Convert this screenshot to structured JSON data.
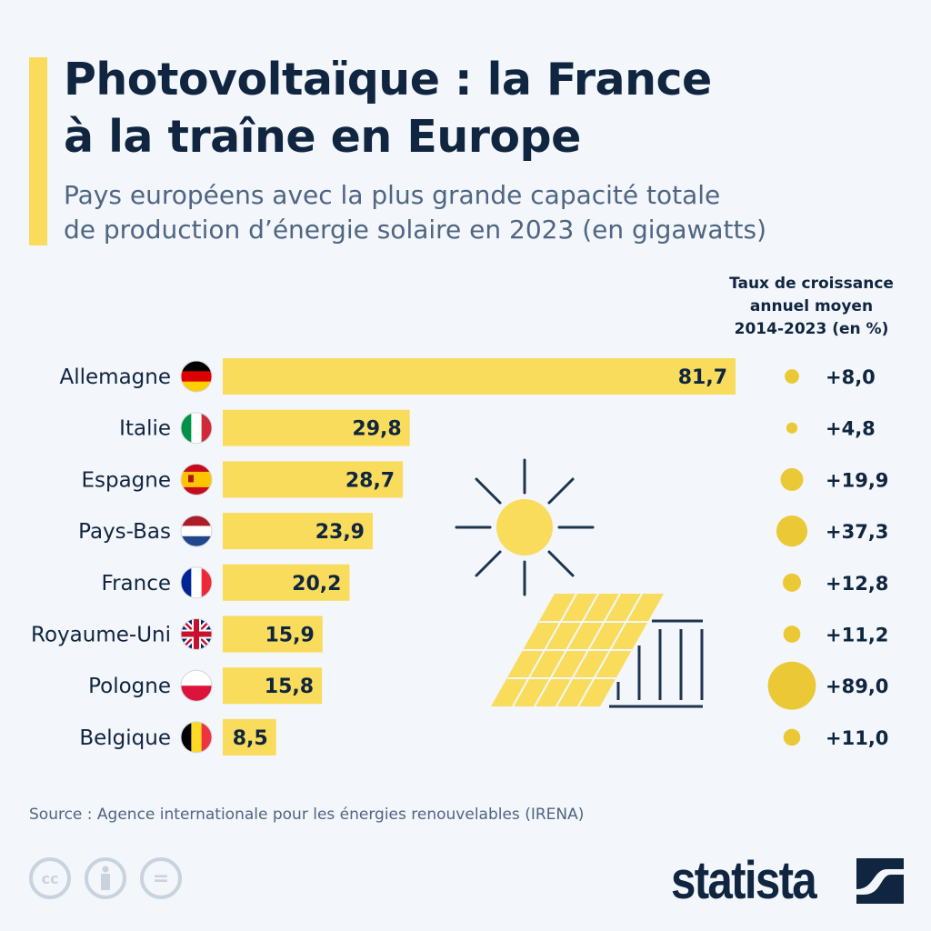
{
  "header": {
    "title_line1": "Photovoltaïque : la France",
    "title_line2": "à la traîne en Europe",
    "subtitle_line1": "Pays européens avec la plus grande capacité totale",
    "subtitle_line2": "de production d’énergie solaire en 2023 (en gigawatts)"
  },
  "growth_header": {
    "line1": "Taux de croissance",
    "line2": "annuel moyen",
    "line3": "2014-2023 (en %)"
  },
  "chart_data": {
    "type": "bar",
    "orientation": "horizontal",
    "categories": [
      "Allemagne",
      "Italie",
      "Espagne",
      "Pays-Bas",
      "France",
      "Royaume-Uni",
      "Pologne",
      "Belgique"
    ],
    "values": [
      81.7,
      29.8,
      28.7,
      23.9,
      20.2,
      15.9,
      15.8,
      8.5
    ],
    "value_labels": [
      "81,7",
      "29,8",
      "28,7",
      "23,9",
      "20,2",
      "15,9",
      "15,8",
      "8,5"
    ],
    "growth_rates": [
      8.0,
      4.8,
      19.9,
      37.3,
      12.8,
      11.2,
      89.0,
      11.0
    ],
    "growth_labels": [
      "+8,0",
      "+4,8",
      "+19,9",
      "+37,3",
      "+12,8",
      "+11,2",
      "+89,0",
      "+11,0"
    ],
    "bar_color": "#f9dc5c",
    "bubble_color": "#ebc936",
    "grid": false
  },
  "footer": {
    "source": "Source : Agence internationale pour les énergies renouvelables (IRENA)",
    "logo": "statista",
    "license_icons": [
      "cc-icon",
      "attribution-icon",
      "no-derivatives-icon"
    ],
    "cc_label": "cc",
    "eq_label": "="
  }
}
